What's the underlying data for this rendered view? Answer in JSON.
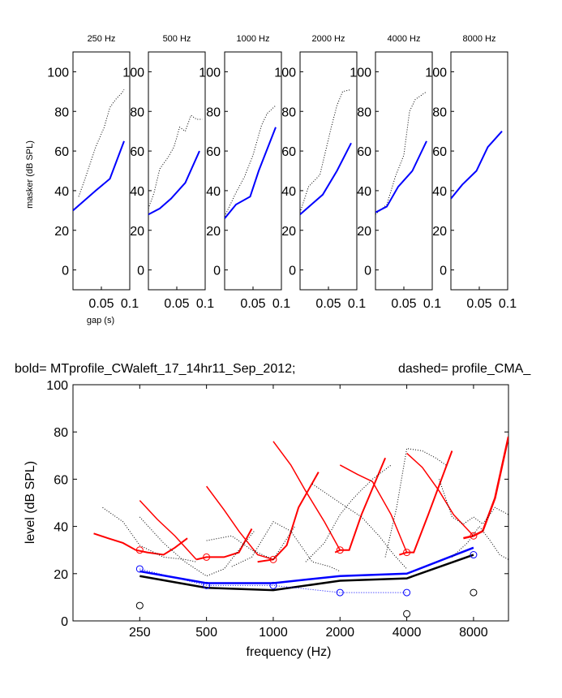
{
  "chart_data": [
    {
      "type": "line",
      "panels": [
        {
          "title": "250 Hz",
          "solid": {
            "x": [
              0,
              0.02,
              0.04,
              0.065,
              0.09
            ],
            "y": [
              30,
              35,
              40,
              46,
              65
            ]
          },
          "dotted": {
            "x": [
              0.01,
              0.02,
              0.04,
              0.055,
              0.065,
              0.075,
              0.085,
              0.09
            ],
            "y": [
              37,
              45,
              62,
              72,
              82,
              86,
              89,
              91
            ]
          }
        },
        {
          "title": "500 Hz",
          "solid": {
            "x": [
              0,
              0.02,
              0.04,
              0.065,
              0.09
            ],
            "y": [
              28,
              31,
              36,
              44,
              60
            ]
          },
          "dotted": {
            "x": [
              0,
              0.01,
              0.02,
              0.035,
              0.045,
              0.055,
              0.065,
              0.075,
              0.085,
              0.095
            ],
            "y": [
              31,
              39,
              51,
              57,
              62,
              72,
              70,
              78,
              76,
              76
            ]
          }
        },
        {
          "title": "1000 Hz",
          "solid": {
            "x": [
              0,
              0.02,
              0.045,
              0.06,
              0.09
            ],
            "y": [
              26,
              33,
              37,
              50,
              72
            ]
          },
          "dotted": {
            "x": [
              0,
              0.02,
              0.035,
              0.05,
              0.065,
              0.075,
              0.09
            ],
            "y": [
              27,
              39,
              47,
              58,
              73,
              79,
              83
            ]
          }
        },
        {
          "title": "2000 Hz",
          "solid": {
            "x": [
              0,
              0.02,
              0.04,
              0.065,
              0.09
            ],
            "y": [
              28,
              33,
              38,
              50,
              64
            ]
          },
          "dotted": {
            "x": [
              0,
              0.015,
              0.035,
              0.045,
              0.055,
              0.065,
              0.075,
              0.09
            ],
            "y": [
              29,
              42,
              48,
              60,
              72,
              83,
              90,
              91
            ]
          }
        },
        {
          "title": "4000 Hz",
          "solid": {
            "x": [
              0,
              0.02,
              0.04,
              0.065,
              0.09
            ],
            "y": [
              29,
              32,
              42,
              50,
              65
            ]
          },
          "dotted": {
            "x": [
              0,
              0.02,
              0.035,
              0.05,
              0.06,
              0.07,
              0.09
            ],
            "y": [
              28,
              33,
              47,
              58,
              80,
              86,
              90
            ]
          }
        },
        {
          "title": "8000 Hz",
          "solid": {
            "x": [
              0,
              0.02,
              0.045,
              0.065,
              0.09
            ],
            "y": [
              36,
              43,
              50,
              62,
              70
            ]
          },
          "dotted": {
            "x": [],
            "y": []
          }
        }
      ],
      "xlim": [
        0,
        0.1
      ],
      "ylim": [
        -10,
        110
      ],
      "xticks": [
        0.05,
        0.1
      ],
      "xtick_labels": [
        "0.05",
        "0.1"
      ],
      "yticks": [
        0,
        20,
        40,
        60,
        80,
        100
      ],
      "ytick_labels": [
        "0",
        "20",
        "40",
        "60",
        "80",
        "100"
      ],
      "ylabel": "masker (dB SPL)",
      "xlabel": "gap (s)",
      "solid_color": "#0000ff",
      "dotted_color": "#000000"
    },
    {
      "type": "line",
      "title_left": "bold= MTprofile_CWaleft_17_14hr11_Sep_2012;",
      "title_right": "dashed=  profile_CMA_",
      "xlabel": "frequency (Hz)",
      "ylabel": "level (dB SPL)",
      "x_scale": "log2",
      "xlim": [
        125,
        11500
      ],
      "ylim": [
        0,
        100
      ],
      "xticks": [
        250,
        500,
        1000,
        2000,
        4000,
        8000
      ],
      "xtick_labels": [
        "250",
        "500",
        "1000",
        "2000",
        "4000",
        "8000"
      ],
      "yticks": [
        0,
        20,
        40,
        60,
        80,
        100
      ],
      "ytick_labels": [
        "0",
        "20",
        "40",
        "60",
        "80",
        "100"
      ],
      "series": [
        {
          "color": "#ff0000",
          "style": "solid",
          "width": 2,
          "x": [
            155,
            180,
            210,
            240,
            270,
            320,
            360,
            410
          ],
          "y": [
            37,
            35,
            33,
            30,
            29,
            28,
            31,
            35
          ]
        },
        {
          "color": "#ff0000",
          "style": "solid",
          "width": 1.5,
          "x": [
            250,
            300,
            360,
            450
          ],
          "y": [
            51,
            43,
            36,
            26
          ]
        },
        {
          "color": "#ff0000",
          "style": "solid",
          "width": 2,
          "x": [
            450,
            500,
            600,
            700,
            800
          ],
          "y": [
            26,
            27,
            27,
            29,
            39
          ]
        },
        {
          "color": "#ff0000",
          "style": "solid",
          "width": 1.5,
          "x": [
            500,
            600,
            700,
            850,
            1000
          ],
          "y": [
            57,
            47,
            38,
            28,
            26
          ]
        },
        {
          "color": "#ff0000",
          "style": "solid",
          "width": 2,
          "x": [
            850,
            1000,
            1150,
            1300,
            1600
          ],
          "y": [
            25,
            26,
            32,
            48,
            63
          ]
        },
        {
          "color": "#ff0000",
          "style": "solid",
          "width": 1.5,
          "x": [
            1000,
            1200,
            1400,
            1700,
            2000
          ],
          "y": [
            76,
            66,
            55,
            42,
            30
          ]
        },
        {
          "color": "#ff0000",
          "style": "solid",
          "width": 2,
          "x": [
            1900,
            2000,
            2200,
            2500,
            3200
          ],
          "y": [
            29,
            30,
            30,
            45,
            69
          ]
        },
        {
          "color": "#ff0000",
          "style": "solid",
          "width": 1.5,
          "x": [
            2000,
            2400,
            2800,
            3400,
            4000
          ],
          "y": [
            66,
            62,
            59,
            45,
            29
          ]
        },
        {
          "color": "#ff0000",
          "style": "solid",
          "width": 2,
          "x": [
            3700,
            4000,
            4300,
            5000,
            6400
          ],
          "y": [
            28,
            29,
            29,
            45,
            72
          ]
        },
        {
          "color": "#ff0000",
          "style": "solid",
          "width": 1.5,
          "x": [
            4000,
            4700,
            5600,
            6500,
            8000
          ],
          "y": [
            71,
            65,
            55,
            45,
            36
          ]
        },
        {
          "color": "#ff0000",
          "style": "solid",
          "width": 2.5,
          "x": [
            7200,
            8000,
            8800,
            10000,
            11500
          ],
          "y": [
            35,
            36,
            38,
            52,
            78
          ]
        },
        {
          "color": "#0000ff",
          "style": "solid",
          "width": 2.5,
          "x": [
            250,
            500,
            1000,
            2000,
            4000,
            8000
          ],
          "y": [
            21,
            16,
            16,
            19,
            20,
            31
          ]
        },
        {
          "color": "#000000",
          "style": "solid",
          "width": 2.5,
          "x": [
            250,
            500,
            1000,
            2000,
            4000,
            8000
          ],
          "y": [
            19,
            14,
            13,
            17,
            18,
            28
          ]
        },
        {
          "color": "#0000ff",
          "style": "dotted",
          "width": 1,
          "x": [
            250,
            500,
            1000,
            2000,
            4000
          ],
          "y": [
            22,
            15,
            15,
            12,
            12
          ]
        },
        {
          "color": "#000000",
          "style": "dotted",
          "width": 1,
          "x": [
            170,
            210,
            250,
            320,
            400,
            450
          ],
          "y": [
            48,
            42,
            32,
            27,
            26,
            25
          ]
        },
        {
          "color": "#000000",
          "style": "dotted",
          "width": 1,
          "x": [
            250,
            320,
            400,
            500,
            600,
            700,
            820
          ],
          "y": [
            44,
            33,
            25,
            19,
            22,
            30,
            38
          ]
        },
        {
          "color": "#000000",
          "style": "dotted",
          "width": 1,
          "x": [
            500,
            650,
            800,
            1000,
            1250
          ],
          "y": [
            34,
            36,
            30,
            26,
            40
          ]
        },
        {
          "color": "#000000",
          "style": "dotted",
          "width": 1,
          "x": [
            650,
            800,
            1000,
            1200,
            1500,
            1800,
            2000
          ],
          "y": [
            23,
            27,
            42,
            38,
            25,
            23,
            21
          ]
        },
        {
          "color": "#000000",
          "style": "dotted",
          "width": 1,
          "x": [
            1500,
            2000,
            2500,
            3000,
            3500,
            4000
          ],
          "y": [
            58,
            50,
            44,
            36,
            28,
            22
          ]
        },
        {
          "color": "#000000",
          "style": "dotted",
          "width": 1,
          "x": [
            1400,
            1700,
            2000,
            2300,
            2800,
            3400
          ],
          "y": [
            25,
            33,
            45,
            52,
            60,
            66
          ]
        },
        {
          "color": "#000000",
          "style": "dotted",
          "width": 1,
          "x": [
            3200,
            3600,
            4000,
            4700,
            5400,
            6000
          ],
          "y": [
            27,
            48,
            73,
            72,
            69,
            66
          ]
        },
        {
          "color": "#000000",
          "style": "dotted",
          "width": 1,
          "x": [
            5600,
            6400,
            7200,
            8000,
            8800,
            10000,
            11500
          ],
          "y": [
            60,
            44,
            41,
            44,
            41,
            48,
            45
          ]
        },
        {
          "color": "#000000",
          "style": "dotted",
          "width": 1,
          "x": [
            6400,
            7500,
            8500,
            9500,
            10500,
            11500
          ],
          "y": [
            27,
            33,
            40,
            34,
            28,
            26
          ]
        }
      ],
      "markers": [
        {
          "color": "#ff0000",
          "x": [
            250,
            500,
            1000,
            2000,
            4000,
            8000
          ],
          "y": [
            30,
            27,
            26,
            30,
            29,
            36
          ]
        },
        {
          "color": "#0000ff",
          "x": [
            250,
            500,
            1000,
            2000,
            4000,
            8000
          ],
          "y": [
            22,
            15,
            15,
            12,
            12,
            28
          ]
        },
        {
          "color": "#000000",
          "x": [
            250,
            4000,
            8000
          ],
          "y": [
            6.5,
            3,
            12
          ]
        }
      ]
    }
  ]
}
